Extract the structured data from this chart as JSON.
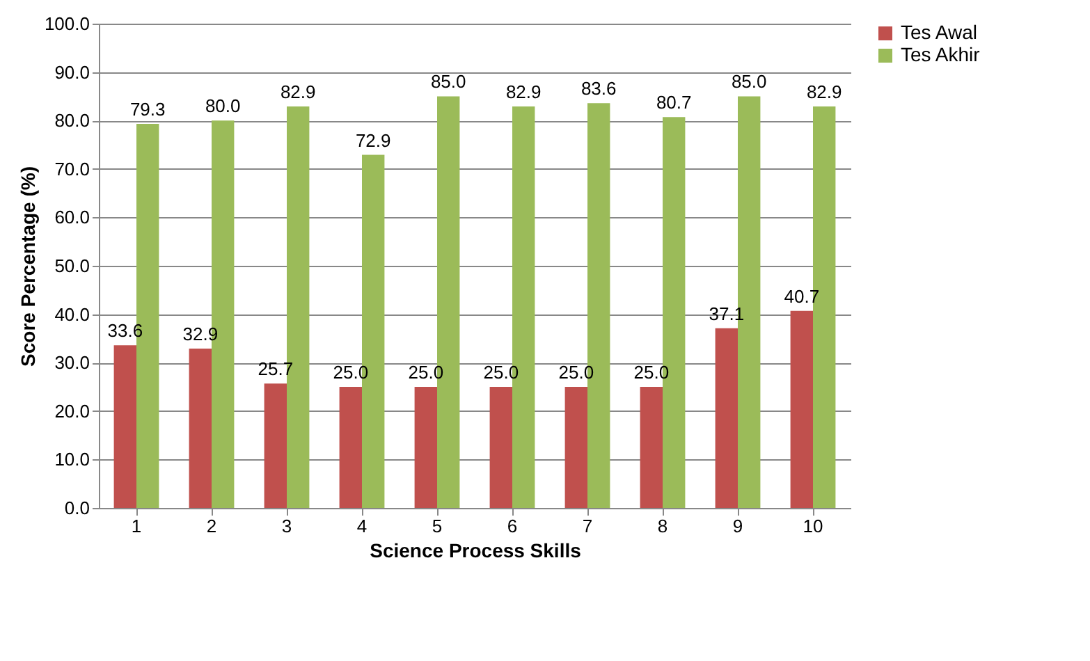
{
  "chart_data": {
    "type": "bar",
    "xlabel": "Science Process Skills",
    "ylabel": "Score Percentage (%)",
    "categories": [
      "1",
      "2",
      "3",
      "4",
      "5",
      "6",
      "7",
      "8",
      "9",
      "10"
    ],
    "series": [
      {
        "name": "Tes Awal",
        "color": "#c0504d",
        "values": [
          33.6,
          32.9,
          25.7,
          25.0,
          25.0,
          25.0,
          25.0,
          25.0,
          37.1,
          40.7
        ],
        "value_labels": [
          "33.6",
          "32.9",
          "25.7",
          "25.0",
          "25.0",
          "25.0",
          "25.0",
          "25.0",
          "37.1",
          "40.7"
        ]
      },
      {
        "name": "Tes Akhir",
        "color": "#9bbb59",
        "values": [
          79.3,
          80.0,
          82.9,
          72.9,
          85.0,
          82.9,
          83.6,
          80.7,
          85.0,
          82.9
        ],
        "value_labels": [
          "79.3",
          "80.0",
          "82.9",
          "72.9",
          "85.0",
          "82.9",
          "83.6",
          "80.7",
          "85.0",
          "82.9"
        ]
      }
    ],
    "ylim": [
      0,
      100
    ],
    "yticks": [
      {
        "value": 0,
        "label": "0.0"
      },
      {
        "value": 10,
        "label": "10.0"
      },
      {
        "value": 20,
        "label": "20.0"
      },
      {
        "value": 30,
        "label": "30.0"
      },
      {
        "value": 40,
        "label": "40.0"
      },
      {
        "value": 50,
        "label": "50.0"
      },
      {
        "value": 60,
        "label": "60.0"
      },
      {
        "value": 70,
        "label": "70.0"
      },
      {
        "value": 80,
        "label": "80.0"
      },
      {
        "value": 90,
        "label": "90.0"
      },
      {
        "value": 100,
        "label": "100.0"
      }
    ],
    "grid": "y",
    "legend": "right"
  }
}
